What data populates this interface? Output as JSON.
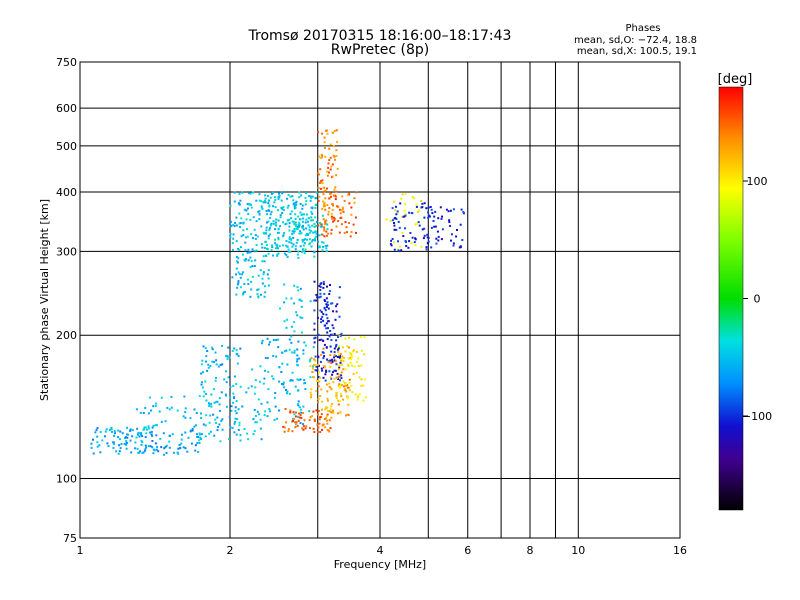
{
  "chart_data": {
    "type": "scatter",
    "title": "Tromsø 20170315 18:16:00–18:17:43",
    "subtitle": "RwPretec (8p)",
    "xlabel": "Frequency [MHz]",
    "ylabel": "Stationary phase Virtual Height [km]",
    "x_scale": "log",
    "y_scale": "log",
    "xlim": [
      1,
      16
    ],
    "ylim": [
      75,
      750
    ],
    "x_ticks": [
      1,
      2,
      4,
      6,
      8,
      10,
      16
    ],
    "y_ticks": [
      75,
      100,
      200,
      300,
      400,
      500,
      600,
      750
    ],
    "x_grid": [
      1,
      2,
      3,
      4,
      5,
      6,
      7,
      8,
      9,
      10,
      16
    ],
    "y_grid": [
      100,
      200,
      300,
      400,
      500,
      600
    ],
    "grid": true,
    "stats": {
      "heading": "Phases",
      "line_o": "mean, sd,O: −72.4, 18.8",
      "line_x": "mean, sd,X: 100.5, 19.1"
    },
    "colorbar": {
      "label": "[deg]",
      "range": [
        -180,
        180
      ],
      "ticks": [
        100,
        0,
        -100
      ],
      "tick_labels": [
        "100",
        "0",
        "−100"
      ]
    },
    "series": [
      {
        "clusters": [
          {
            "f0": 1.05,
            "f1": 1.75,
            "h0": 112,
            "h1": 128,
            "n": 140,
            "phase": -60
          },
          {
            "f0": 1.3,
            "f1": 1.95,
            "h0": 118,
            "h1": 150,
            "n": 70,
            "phase": -50
          },
          {
            "f0": 1.75,
            "f1": 2.1,
            "h0": 120,
            "h1": 190,
            "n": 90,
            "phase": -55
          },
          {
            "f0": 2.0,
            "f1": 2.35,
            "h0": 120,
            "h1": 170,
            "n": 40,
            "phase": -50
          },
          {
            "f0": 2.0,
            "f1": 2.4,
            "h0": 240,
            "h1": 400,
            "n": 170,
            "phase": -50
          },
          {
            "f0": 2.35,
            "f1": 3.0,
            "h0": 290,
            "h1": 400,
            "n": 210,
            "phase": -45
          },
          {
            "f0": 2.6,
            "f1": 3.15,
            "h0": 300,
            "h1": 360,
            "n": 70,
            "phase": -40
          },
          {
            "f0": 2.3,
            "f1": 2.9,
            "h0": 130,
            "h1": 200,
            "n": 80,
            "phase": -55
          },
          {
            "f0": 2.5,
            "f1": 2.95,
            "h0": 150,
            "h1": 260,
            "n": 50,
            "phase": -50
          },
          {
            "f0": 2.95,
            "f1": 3.35,
            "h0": 160,
            "h1": 260,
            "n": 150,
            "phase": -105
          },
          {
            "f0": 3.0,
            "f1": 3.3,
            "h0": 330,
            "h1": 540,
            "n": 90,
            "phase": 145
          },
          {
            "f0": 3.05,
            "f1": 3.6,
            "h0": 320,
            "h1": 400,
            "n": 60,
            "phase": 150
          },
          {
            "f0": 2.55,
            "f1": 3.2,
            "h0": 125,
            "h1": 140,
            "n": 70,
            "phase": 150
          },
          {
            "f0": 2.9,
            "f1": 3.5,
            "h0": 135,
            "h1": 190,
            "n": 110,
            "phase": 130
          },
          {
            "f0": 3.3,
            "f1": 3.75,
            "h0": 145,
            "h1": 200,
            "n": 60,
            "phase": 100
          },
          {
            "f0": 4.1,
            "f1": 4.9,
            "h0": 300,
            "h1": 400,
            "n": 30,
            "phase": 100
          },
          {
            "f0": 4.2,
            "f1": 5.9,
            "h0": 300,
            "h1": 380,
            "n": 110,
            "phase": -105
          }
        ]
      }
    ]
  }
}
